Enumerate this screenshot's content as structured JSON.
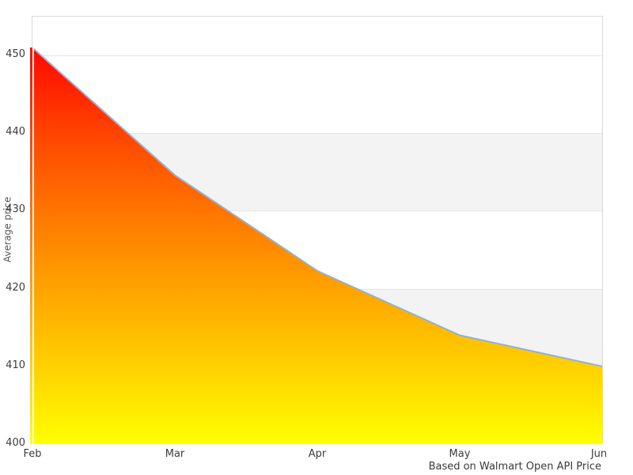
{
  "chart_data": {
    "type": "area",
    "title": "",
    "xlabel": "",
    "ylabel": "Average price",
    "caption": "Based on Walmart Open API Price",
    "x": [
      "Feb",
      "Mar",
      "Apr",
      "May",
      "Jun"
    ],
    "series": [
      {
        "name": "Average price",
        "values": [
          451,
          434.6,
          422.3,
          414,
          410
        ]
      }
    ],
    "ylim": [
      400,
      455
    ],
    "yticks": [
      400,
      410,
      420,
      430,
      440,
      450
    ],
    "grid": "horizontal",
    "legend": "none",
    "band_ranges": [
      [
        430,
        440
      ],
      [
        410,
        420
      ]
    ],
    "colors": {
      "line": "#8fb2d8",
      "area_gradient_top_to_bottom": [
        "#ff0800",
        "#ff4d00",
        "#ff8a00",
        "#ffc400",
        "#ffff00"
      ],
      "band": "#f3f3f3",
      "gridline": "#e6e6e6",
      "plot_border": "#d9d9d9",
      "tick_text": "#3c3c3c",
      "axis_title_text": "#555555",
      "caption_text": "#3a3a3a"
    }
  }
}
